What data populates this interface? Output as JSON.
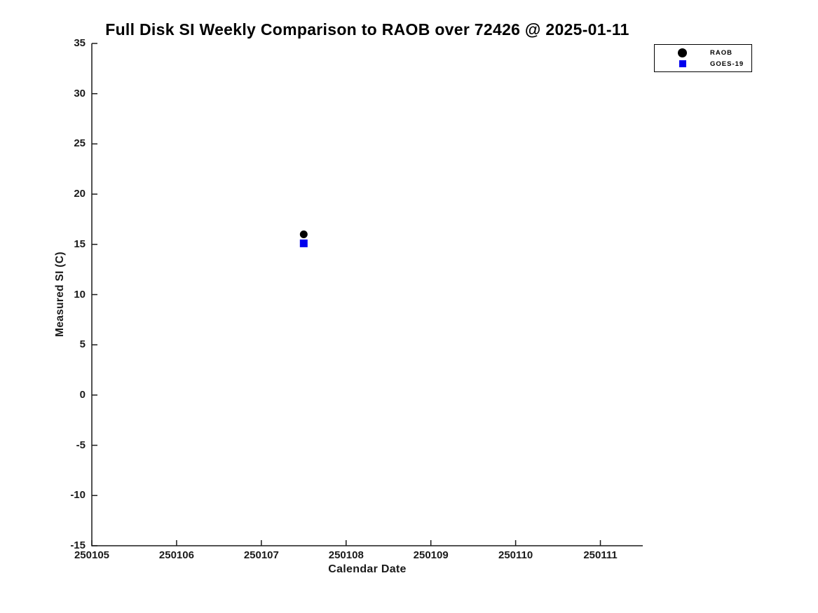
{
  "chart_data": {
    "type": "scatter",
    "title": "Full Disk SI Weekly Comparison to RAOB over 72426 @ 2025-01-11",
    "xlabel": "Calendar Date",
    "ylabel": "Measured SI (C)",
    "xlim": [
      250105,
      250111.5
    ],
    "ylim": [
      -15,
      35
    ],
    "xticks": [
      250105,
      250106,
      250107,
      250108,
      250109,
      250110,
      250111
    ],
    "yticks": [
      -15,
      -10,
      -5,
      0,
      5,
      10,
      15,
      20,
      25,
      30,
      35
    ],
    "grid": false,
    "legend_position": "top-right",
    "axis_color": "#1a1a1a",
    "background_color": "#ffffff",
    "series": [
      {
        "name": "RAOB",
        "marker": "circle",
        "color": "#000000",
        "points": [
          {
            "x": 250107.5,
            "y": 16.0
          }
        ]
      },
      {
        "name": "GOES-19",
        "marker": "square",
        "color": "#0000ee",
        "points": [
          {
            "x": 250107.5,
            "y": 15.1
          }
        ]
      }
    ]
  }
}
